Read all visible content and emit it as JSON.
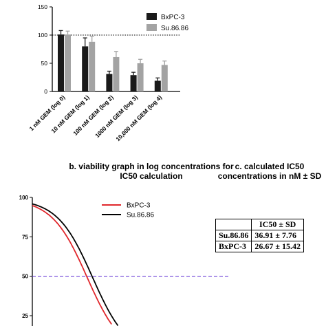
{
  "chart_data": [
    {
      "type": "bar",
      "title": "",
      "xlabel": "",
      "ylabel": "",
      "ylim": [
        0,
        150
      ],
      "yticks": [
        0,
        50,
        100,
        150
      ],
      "reference_line": 100,
      "legend_position": "top-right",
      "categories": [
        "1 nM GEM (log 0)",
        "10 nM GEM (log 1)",
        "100 nM GEM (log 2)",
        "1000 nM GEM (log 3)",
        "10,000 nM GEM (log 4)"
      ],
      "series": [
        {
          "name": "BxPC-3",
          "color": "#1a1a1a",
          "values": [
            101,
            80,
            31,
            29,
            19
          ],
          "errors": [
            7,
            15,
            5,
            5,
            5
          ]
        },
        {
          "name": "Su.86.86",
          "color": "#a3a3a3",
          "values": [
            101,
            88,
            61,
            50,
            47
          ],
          "errors": [
            6,
            10,
            10,
            7,
            7
          ]
        }
      ]
    },
    {
      "type": "line",
      "title": "b. viability graph in log concentrations for IC50 calculation",
      "xlabel": "",
      "ylabel": "",
      "ylim": [
        25,
        100
      ],
      "yticks": [
        25,
        50,
        75,
        100
      ],
      "xlim": [
        0,
        4
      ],
      "reference_line": 50,
      "reference_line_color": "#6a3fd8",
      "legend_position": "top",
      "series": [
        {
          "name": "BxPC-3",
          "color": "#e0262b",
          "top": 99,
          "bottom": 0,
          "logIC50": 1.426,
          "hill": -0.95
        },
        {
          "name": "Su.86.86",
          "color": "#000000",
          "top": 99,
          "bottom": 0,
          "logIC50": 1.567,
          "hill": -0.95
        }
      ]
    }
  ],
  "headings": {
    "b": "b. viability graph in log concentrations for IC50 calculation",
    "c": "c. calculated IC50 concentrations in nM ± SD"
  },
  "table": {
    "header": [
      "",
      "IC50 ± SD"
    ],
    "rows": [
      {
        "label": "Su.86.86",
        "value": "36.91 ± 7.76"
      },
      {
        "label": "BxPC-3",
        "value": "26.67 ± 15.42"
      }
    ]
  }
}
